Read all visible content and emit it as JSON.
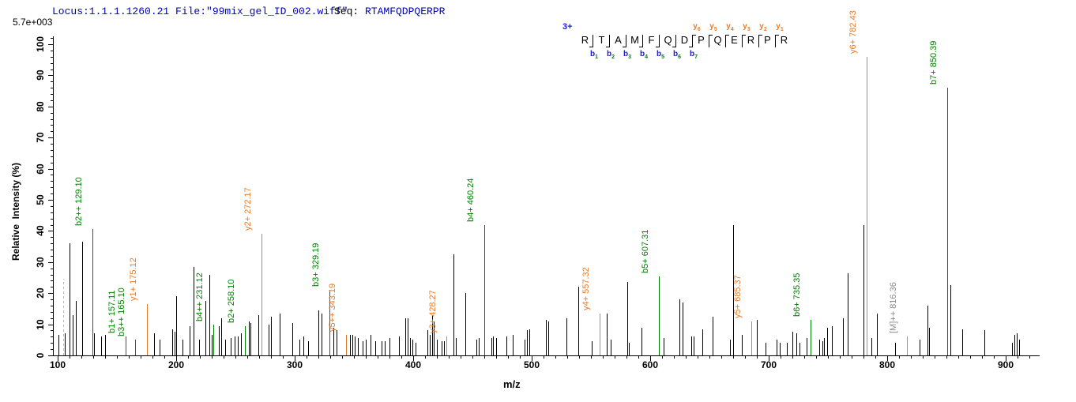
{
  "header": {
    "locus_file": "Locus:1.1.1.1260.21 File:\"99mix_gel_ID_002.wiff\"",
    "seq_label": "Seq:",
    "sequence": "RTAMFQDPQERPR",
    "max_intensity": "5.7e+003"
  },
  "fragment_diagram": {
    "charge": "3+",
    "residues": "RTAMFQDPQERPR",
    "b_ions": [
      "b1",
      "b2",
      "b3",
      "b4",
      "b5",
      "b6",
      "b7"
    ],
    "y_ions": [
      "y6",
      "y5",
      "y4",
      "y3",
      "y2",
      "y1"
    ],
    "y_first_divider": 7
  },
  "colors": {
    "b_series": "#008000",
    "y_series": "#e87b28",
    "neutral_peak": "#000000",
    "precursor_dash": "#b8b8b8",
    "matched_parent": "#8a8a8a",
    "header_blue": "#0000bf"
  },
  "chart_data": {
    "type": "bar",
    "title": "",
    "xlabel": "m/z",
    "ylabel": "Relative  Intensity (%)",
    "xlim": [
      96,
      927
    ],
    "ylim": [
      0,
      100
    ],
    "x_ticks": [
      100,
      200,
      300,
      400,
      500,
      600,
      700,
      800,
      900
    ],
    "y_ticks": [
      0,
      10,
      20,
      30,
      40,
      50,
      60,
      70,
      80,
      90,
      100
    ],
    "grid": false,
    "annotated_peaks": [
      {
        "ion": "b2++",
        "mz": 129.1,
        "intensity_pct": 40.5,
        "series": "b"
      },
      {
        "ion": "b1+",
        "mz": 157.11,
        "intensity_pct": 6,
        "series": "b"
      },
      {
        "ion": "b3++",
        "mz": 165.1,
        "intensity_pct": 5,
        "series": "b"
      },
      {
        "ion": "y1+",
        "mz": 175.12,
        "intensity_pct": 16.5,
        "series": "y"
      },
      {
        "ion": "b4++",
        "mz": 231.12,
        "intensity_pct": 10,
        "series": "b"
      },
      {
        "ion": "b2+",
        "mz": 258.1,
        "intensity_pct": 9.5,
        "series": "b"
      },
      {
        "ion": "y2+",
        "mz": 272.17,
        "intensity_pct": 39,
        "series": "y"
      },
      {
        "ion": "b3+",
        "mz": 329.19,
        "intensity_pct": 21,
        "series": "b"
      },
      {
        "ion": "y5++",
        "mz": 343.19,
        "intensity_pct": 6.5,
        "series": "y"
      },
      {
        "ion": "y3+",
        "mz": 428.27,
        "intensity_pct": 6,
        "series": "y"
      },
      {
        "ion": "b4+",
        "mz": 460.24,
        "intensity_pct": 42,
        "series": "b"
      },
      {
        "ion": "y4+",
        "mz": 557.32,
        "intensity_pct": 13.5,
        "series": "y"
      },
      {
        "ion": "b5+",
        "mz": 607.31,
        "intensity_pct": 25.5,
        "series": "b"
      },
      {
        "ion": "y5+",
        "mz": 685.37,
        "intensity_pct": 11,
        "series": "y"
      },
      {
        "ion": "b6+",
        "mz": 735.35,
        "intensity_pct": 11.5,
        "series": "b"
      },
      {
        "ion": "y6+",
        "mz": 782.43,
        "intensity_pct": 96,
        "series": "y"
      },
      {
        "ion": "[M]++",
        "mz": 816.36,
        "intensity_pct": 6,
        "series": "M"
      },
      {
        "ion": "b7+",
        "mz": 850.39,
        "intensity_pct": 86,
        "series": "b"
      }
    ],
    "precursor": {
      "mz": 104.6,
      "intensity_pct": 24.5,
      "style": "dashed"
    },
    "noise_peaks": [
      [
        100.7,
        6.5
      ],
      [
        106,
        7
      ],
      [
        109.8,
        36
      ],
      [
        112.6,
        13
      ],
      [
        115.6,
        17.5
      ],
      [
        120.6,
        36.5
      ],
      [
        130.6,
        7
      ],
      [
        136.6,
        6
      ],
      [
        140.2,
        6.5
      ],
      [
        181.5,
        7
      ],
      [
        186,
        5
      ],
      [
        196.5,
        8.5
      ],
      [
        198.6,
        7.5
      ],
      [
        200.1,
        19
      ],
      [
        205.5,
        5
      ],
      [
        211.5,
        9.5
      ],
      [
        214.8,
        28.5
      ],
      [
        219.5,
        5
      ],
      [
        224.9,
        17.5
      ],
      [
        227.7,
        26
      ],
      [
        229.8,
        6.5
      ],
      [
        235.9,
        9.5
      ],
      [
        238.2,
        12
      ],
      [
        241.3,
        5
      ],
      [
        246,
        5.5
      ],
      [
        249.2,
        6
      ],
      [
        252.1,
        6
      ],
      [
        254.7,
        7
      ],
      [
        261.3,
        11
      ],
      [
        262.9,
        10.5
      ],
      [
        269.6,
        13
      ],
      [
        278,
        10
      ],
      [
        280.2,
        12.5
      ],
      [
        287.3,
        13.5
      ],
      [
        298,
        10.5
      ],
      [
        304.2,
        5
      ],
      [
        307.3,
        6
      ],
      [
        311,
        4.5
      ],
      [
        320.2,
        14.5
      ],
      [
        322.4,
        13.5
      ],
      [
        332.4,
        9
      ],
      [
        335.3,
        8
      ],
      [
        346.9,
        6.5
      ],
      [
        348.7,
        6.5
      ],
      [
        350.9,
        6
      ],
      [
        353.6,
        5.5
      ],
      [
        357.2,
        4.5
      ],
      [
        360.1,
        5
      ],
      [
        364,
        6.5
      ],
      [
        368.2,
        4.5
      ],
      [
        373,
        4.5
      ],
      [
        376.1,
        4.5
      ],
      [
        380.2,
        5.5
      ],
      [
        388,
        6
      ],
      [
        393.1,
        12
      ],
      [
        395.2,
        12
      ],
      [
        397.5,
        5.5
      ],
      [
        399.1,
        5
      ],
      [
        402.3,
        4
      ],
      [
        412,
        8
      ],
      [
        414.1,
        6.5
      ],
      [
        415.8,
        13
      ],
      [
        417.3,
        11
      ],
      [
        419.8,
        5
      ],
      [
        424.2,
        4.5
      ],
      [
        426,
        4.5
      ],
      [
        433.8,
        32.5
      ],
      [
        435.8,
        5.5
      ],
      [
        444.2,
        20
      ],
      [
        453.6,
        5
      ],
      [
        455.3,
        5.5
      ],
      [
        465.8,
        5.5
      ],
      [
        467.1,
        6
      ],
      [
        469.8,
        5.5
      ],
      [
        478.7,
        6
      ],
      [
        484.2,
        6.5
      ],
      [
        494.2,
        5
      ],
      [
        495.8,
        8
      ],
      [
        498.1,
        8.5
      ],
      [
        511.8,
        11.5
      ],
      [
        514.2,
        11
      ],
      [
        529.5,
        12
      ],
      [
        539.1,
        22
      ],
      [
        550.7,
        4.5
      ],
      [
        563.5,
        13.5
      ],
      [
        566.9,
        5
      ],
      [
        580.9,
        23.5
      ],
      [
        582.3,
        4
      ],
      [
        592.4,
        9
      ],
      [
        611.3,
        5.5
      ],
      [
        624.7,
        18
      ],
      [
        627.3,
        17
      ],
      [
        634.7,
        6
      ],
      [
        636.6,
        6
      ],
      [
        644.2,
        8.5
      ],
      [
        652.9,
        12.5
      ],
      [
        667.3,
        5
      ],
      [
        670.2,
        42
      ],
      [
        677.5,
        6.5
      ],
      [
        690.2,
        11.5
      ],
      [
        697.4,
        4
      ],
      [
        706.9,
        5
      ],
      [
        709.1,
        4
      ],
      [
        715.3,
        4
      ],
      [
        720.2,
        7.5
      ],
      [
        723.6,
        7
      ],
      [
        725.8,
        4
      ],
      [
        732.1,
        5.5
      ],
      [
        742.4,
        5
      ],
      [
        745.1,
        4.5
      ],
      [
        746.9,
        5.5
      ],
      [
        749.5,
        9
      ],
      [
        753.6,
        9.5
      ],
      [
        762.4,
        12
      ],
      [
        766.9,
        26.5
      ],
      [
        779.8,
        42
      ],
      [
        786.9,
        5.5
      ],
      [
        791.3,
        13.5
      ],
      [
        806.9,
        4
      ],
      [
        827.1,
        5
      ],
      [
        833.8,
        16
      ],
      [
        835.5,
        9
      ],
      [
        853.1,
        22.5
      ],
      [
        863.6,
        8.5
      ],
      [
        882,
        8
      ],
      [
        905,
        4
      ],
      [
        907.5,
        6.5
      ],
      [
        909.5,
        7
      ],
      [
        911.5,
        5
      ]
    ]
  }
}
